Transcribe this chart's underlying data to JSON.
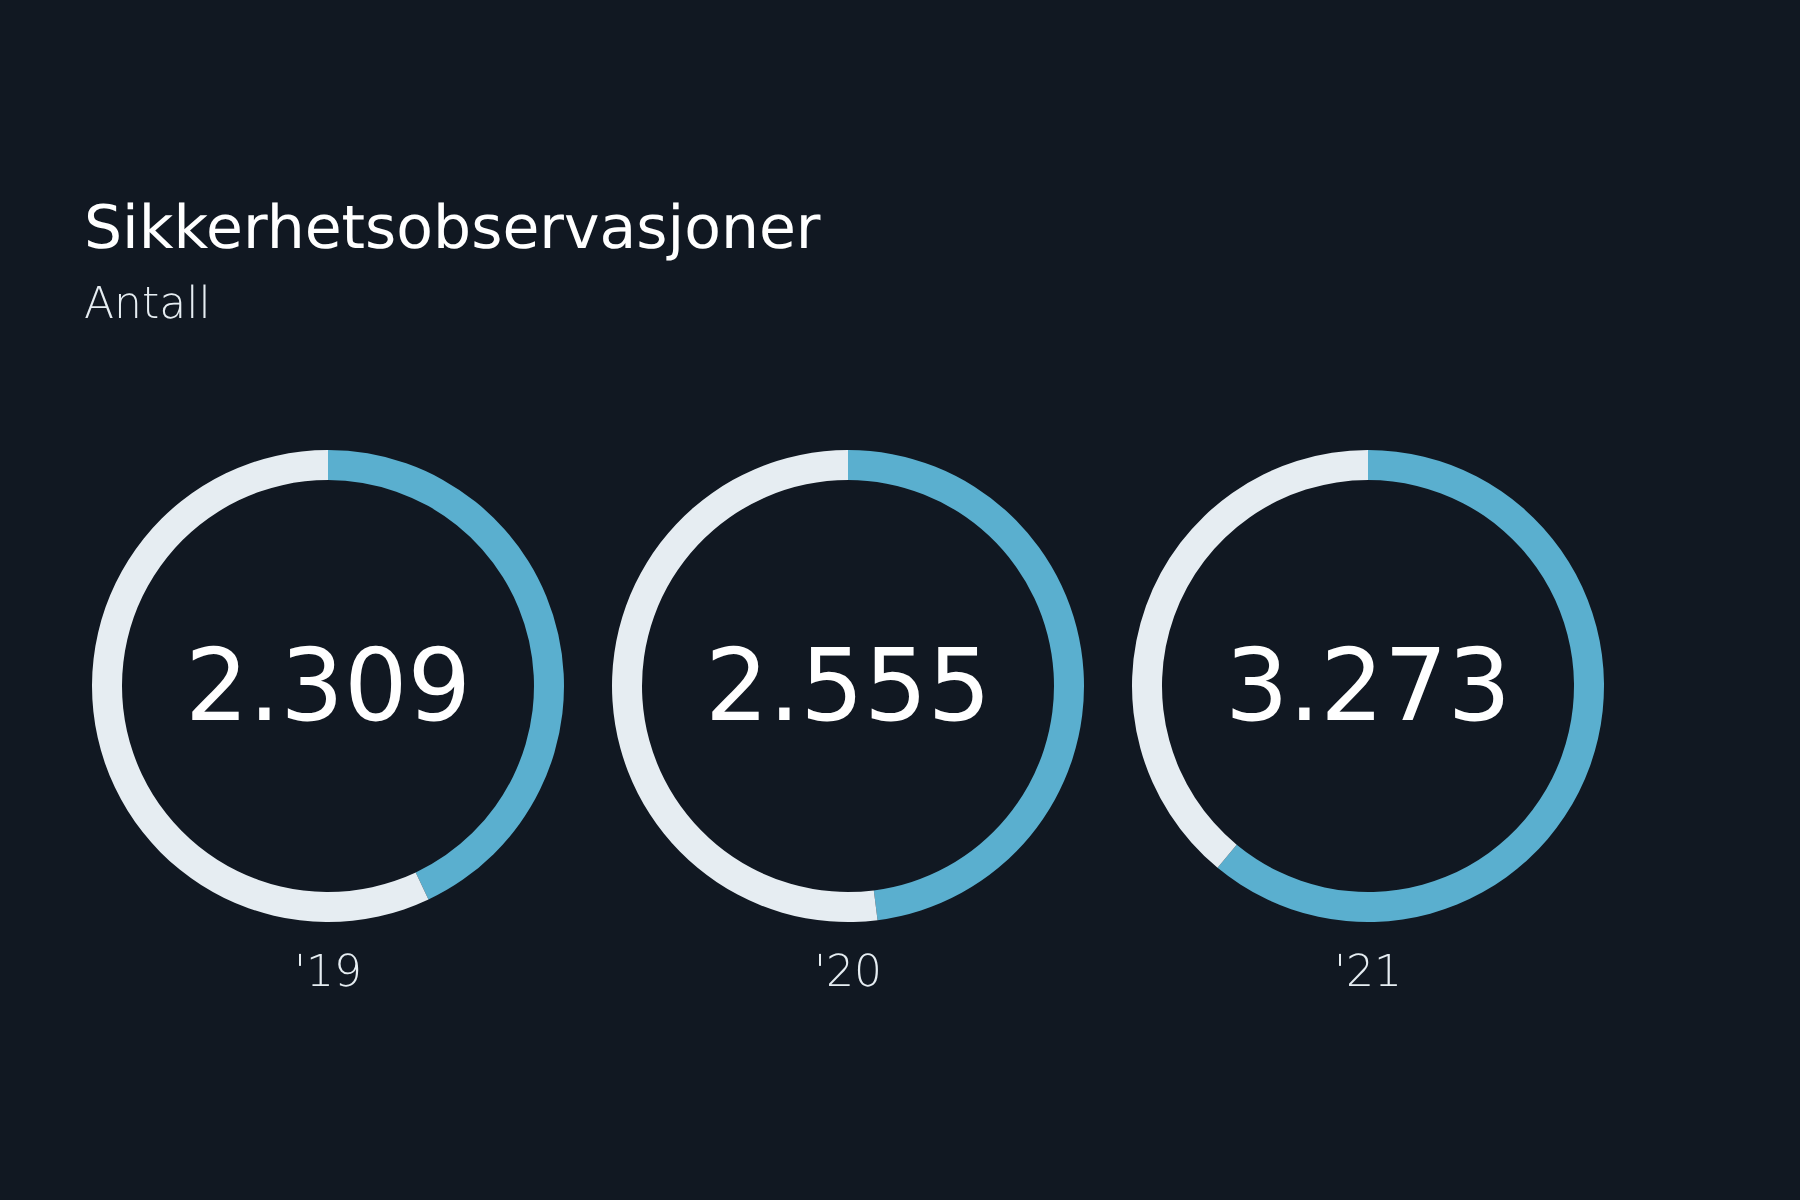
{
  "chart_data": [
    {
      "type": "donut",
      "title": "Sikkerhetsobservasjoner",
      "subtitle": "Antall",
      "categories": [
        null,
        null
      ],
      "values": [
        43,
        57
      ],
      "colors": [
        "#5aafcf",
        "#e6edf2"
      ],
      "annotations": [
        "2.309"
      ],
      "xlabel": "'19"
    },
    {
      "type": "donut",
      "categories": [
        null,
        null
      ],
      "values": [
        48,
        52
      ],
      "colors": [
        "#5aafcf",
        "#e6edf2"
      ],
      "annotations": [
        "2.555"
      ],
      "xlabel": "'20"
    },
    {
      "type": "donut",
      "categories": [
        null,
        null
      ],
      "values": [
        61,
        39
      ],
      "colors": [
        "#5aafcf",
        "#e6edf2"
      ],
      "annotations": [
        "3.273"
      ],
      "xlabel": "'21"
    }
  ]
}
